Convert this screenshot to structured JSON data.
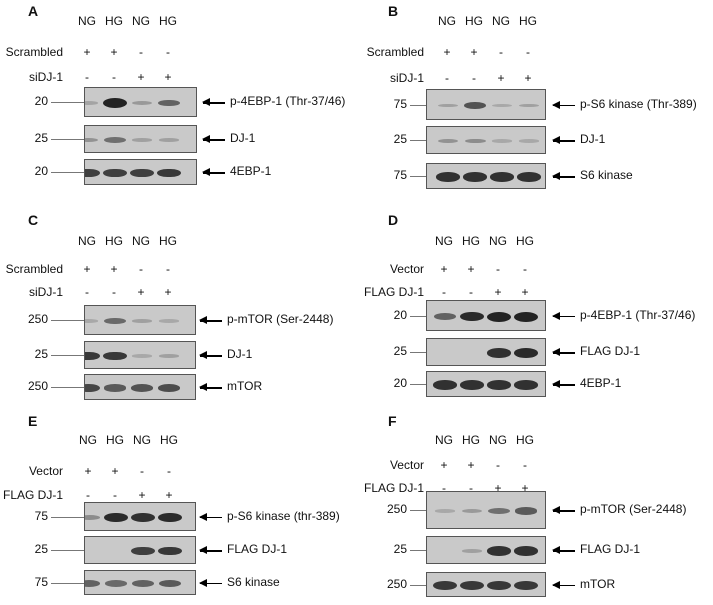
{
  "panels": {
    "A": {
      "label": "A",
      "lanes": [
        "NG",
        "HG",
        "NG",
        "HG"
      ],
      "treat1": {
        "name": "Scrambled",
        "signs": [
          "+",
          "+",
          "-",
          "-"
        ]
      },
      "treat2": {
        "name": "siDJ-1",
        "signs": [
          "-",
          "-",
          "+",
          "+"
        ]
      },
      "blots": [
        {
          "marker": "20",
          "target": "p-4EBP-1 (Thr-37/46)"
        },
        {
          "marker": "25",
          "target": "DJ-1"
        },
        {
          "marker": "20",
          "target": "4EBP-1"
        }
      ]
    },
    "B": {
      "label": "B",
      "lanes": [
        "NG",
        "HG",
        "NG",
        "HG"
      ],
      "treat1": {
        "name": "Scrambled",
        "signs": [
          "+",
          "+",
          "-",
          "-"
        ]
      },
      "treat2": {
        "name": "siDJ-1",
        "signs": [
          "-",
          "-",
          "+",
          "+"
        ]
      },
      "blots": [
        {
          "marker": "75",
          "target": "p-S6 kinase (Thr-389)"
        },
        {
          "marker": "25",
          "target": "DJ-1"
        },
        {
          "marker": "75",
          "target": "S6 kinase"
        }
      ]
    },
    "C": {
      "label": "C",
      "lanes": [
        "NG",
        "HG",
        "NG",
        "HG"
      ],
      "treat1": {
        "name": "Scrambled",
        "signs": [
          "+",
          "+",
          "-",
          "-"
        ]
      },
      "treat2": {
        "name": "siDJ-1",
        "signs": [
          "-",
          "-",
          "+",
          "+"
        ]
      },
      "blots": [
        {
          "marker": "250",
          "target": "p-mTOR (Ser-2448)"
        },
        {
          "marker": "25",
          "target": "DJ-1"
        },
        {
          "marker": "250",
          "target": "mTOR"
        }
      ]
    },
    "D": {
      "label": "D",
      "lanes": [
        "NG",
        "HG",
        "NG",
        "HG"
      ],
      "treat1": {
        "name": "Vector",
        "signs": [
          "+",
          "+",
          "-",
          "-"
        ]
      },
      "treat2": {
        "name": "FLAG DJ-1",
        "signs": [
          "-",
          "-",
          "+",
          "+"
        ]
      },
      "blots": [
        {
          "marker": "20",
          "target": "p-4EBP-1 (Thr-37/46)"
        },
        {
          "marker": "25",
          "target": "FLAG DJ-1"
        },
        {
          "marker": "20",
          "target": "4EBP-1"
        }
      ]
    },
    "E": {
      "label": "E",
      "lanes": [
        "NG",
        "HG",
        "NG",
        "HG"
      ],
      "treat1": {
        "name": "Vector",
        "signs": [
          "+",
          "+",
          "-",
          "-"
        ]
      },
      "treat2": {
        "name": "FLAG DJ-1",
        "signs": [
          "-",
          "-",
          "+",
          "+"
        ]
      },
      "blots": [
        {
          "marker": "75",
          "target": "p-S6 kinase (thr-389)"
        },
        {
          "marker": "25",
          "target": "FLAG DJ-1"
        },
        {
          "marker": "75",
          "target": "S6 kinase"
        }
      ]
    },
    "F": {
      "label": "F",
      "lanes": [
        "NG",
        "HG",
        "NG",
        "HG"
      ],
      "treat1": {
        "name": "Vector",
        "signs": [
          "+",
          "+",
          "-",
          "-"
        ]
      },
      "treat2": {
        "name": "FLAG DJ-1",
        "signs": [
          "-",
          "-",
          "+",
          "+"
        ]
      },
      "blots": [
        {
          "marker": "250",
          "target": "p-mTOR (Ser-2448)"
        },
        {
          "marker": "25",
          "target": "FLAG DJ-1"
        },
        {
          "marker": "250",
          "target": "mTOR"
        }
      ]
    }
  },
  "colors": {
    "background": "#ffffff",
    "membrane": "#c9c9c9",
    "band": "#1a1a1a"
  },
  "band_intensity": {
    "A": [
      [
        0.08,
        1.0,
        0.15,
        0.55
      ],
      [
        0.2,
        0.45,
        0.1,
        0.1
      ],
      [
        0.8,
        0.8,
        0.8,
        0.85
      ]
    ],
    "B": [
      [
        0.1,
        0.65,
        0.05,
        0.1
      ],
      [
        0.2,
        0.25,
        0.05,
        0.05
      ],
      [
        0.9,
        0.9,
        0.9,
        0.9
      ]
    ],
    "C": [
      [
        0.05,
        0.5,
        0.1,
        0.05
      ],
      [
        0.85,
        0.85,
        0.05,
        0.1
      ],
      [
        0.75,
        0.6,
        0.65,
        0.7
      ]
    ],
    "D": [
      [
        0.55,
        0.95,
        1.0,
        1.0
      ],
      [
        0.0,
        0.0,
        0.9,
        0.95
      ],
      [
        0.9,
        0.9,
        0.9,
        0.9
      ]
    ],
    "E": [
      [
        0.25,
        0.95,
        0.9,
        0.95
      ],
      [
        0.0,
        0.0,
        0.8,
        0.85
      ],
      [
        0.55,
        0.5,
        0.55,
        0.6
      ]
    ],
    "F": [
      [
        0.05,
        0.15,
        0.45,
        0.6
      ],
      [
        0.0,
        0.1,
        0.9,
        0.9
      ],
      [
        0.85,
        0.85,
        0.85,
        0.85
      ]
    ]
  }
}
